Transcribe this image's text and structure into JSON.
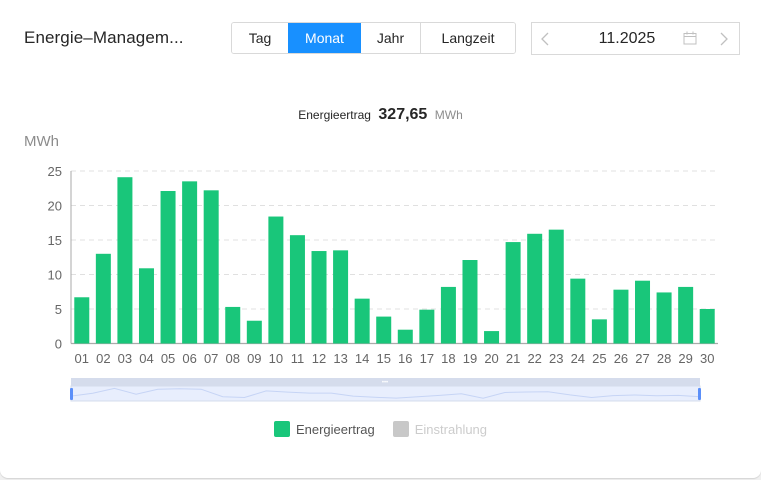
{
  "header": {
    "title": "Energie–Managem...",
    "tabs": [
      {
        "label": "Tag",
        "active": false
      },
      {
        "label": "Monat",
        "active": true
      },
      {
        "label": "Jahr",
        "active": false
      },
      {
        "label": "Langzeit",
        "active": false
      }
    ],
    "datepicker": {
      "value": "11.2025",
      "prev_icon": "chevron-left-icon",
      "next_icon": "chevron-right-icon",
      "calendar_icon": "calendar-icon"
    }
  },
  "summary": {
    "label": "Energieertrag",
    "value": "327,65",
    "unit": "MWh"
  },
  "colors": {
    "accent": "#1890ff",
    "bar": "#19c67a",
    "legend_inactive": "#c8c8c8",
    "grid": "#e0e0e0",
    "axis_text": "#666666"
  },
  "legend": [
    {
      "label": "Energieertrag",
      "color": "#19c67a",
      "active": true
    },
    {
      "label": "Einstrahlung",
      "color": "#c8c8c8",
      "active": false
    }
  ],
  "chart_data": {
    "type": "bar",
    "title": "Energieertrag 327,65 MWh",
    "xlabel": "",
    "ylabel": "MWh",
    "ylim": [
      0,
      25
    ],
    "yticks": [
      0,
      5,
      10,
      15,
      20,
      25
    ],
    "grid": true,
    "legend_position": "bottom",
    "categories": [
      "01",
      "02",
      "03",
      "04",
      "05",
      "06",
      "07",
      "08",
      "09",
      "10",
      "11",
      "12",
      "13",
      "14",
      "15",
      "16",
      "17",
      "18",
      "19",
      "20",
      "21",
      "22",
      "23",
      "24",
      "25",
      "26",
      "27",
      "28",
      "29",
      "30"
    ],
    "series": [
      {
        "name": "Energieertrag",
        "values": [
          6.7,
          13.0,
          24.1,
          10.9,
          22.1,
          23.5,
          22.2,
          5.3,
          3.3,
          18.4,
          15.7,
          13.4,
          13.5,
          6.5,
          3.9,
          2.0,
          4.9,
          8.2,
          12.1,
          1.8,
          14.7,
          15.9,
          16.5,
          9.4,
          3.5,
          7.8,
          9.1,
          7.4,
          8.2,
          5.0
        ]
      },
      {
        "name": "Einstrahlung",
        "values": []
      }
    ],
    "data_zoom": {
      "start": 0,
      "end": 100
    }
  }
}
